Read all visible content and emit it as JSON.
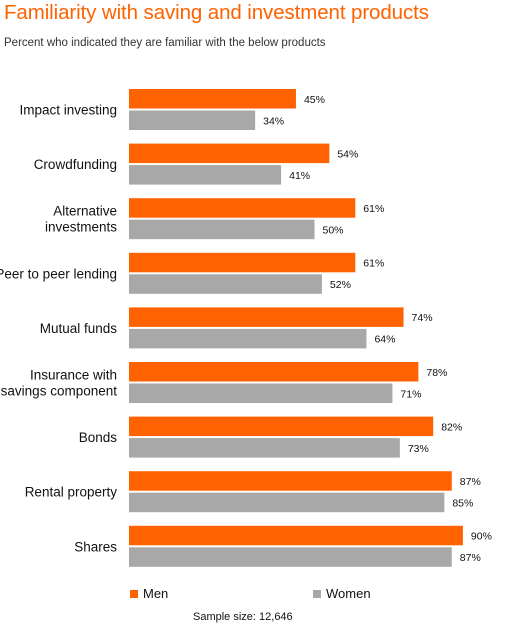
{
  "header": {
    "title": "Familiarity with saving and investment products",
    "subtitle": "Percent who indicated they are familiar with the below products"
  },
  "colors": {
    "men": "#FF6200",
    "women": "#A8A8A8"
  },
  "legend": {
    "men_label": "Men",
    "women_label": "Women"
  },
  "footnote": "Sample size: 12,646",
  "chart_data": {
    "type": "bar",
    "orientation": "horizontal",
    "title": "Familiarity with saving and investment products",
    "subtitle": "Percent who indicated they are familiar with the below products",
    "categories": [
      "Impact investing",
      "Crowdfunding",
      "Alternative investments",
      "Peer to peer lending",
      "Mutual funds",
      "Insurance with savings component",
      "Bonds",
      "Rental property",
      "Shares"
    ],
    "category_lines": [
      [
        "Impact investing"
      ],
      [
        "Crowdfunding"
      ],
      [
        "Alternative",
        "investments"
      ],
      [
        "Peer to peer lending"
      ],
      [
        "Mutual funds"
      ],
      [
        "Insurance with",
        "savings component"
      ],
      [
        "Bonds"
      ],
      [
        "Rental property"
      ],
      [
        "Shares"
      ]
    ],
    "series": [
      {
        "name": "Men",
        "color": "#FF6200",
        "values": [
          45,
          54,
          61,
          61,
          74,
          78,
          82,
          87,
          90
        ],
        "labels": [
          "45%",
          "54%",
          "61%",
          "61%",
          "74%",
          "78%",
          "82%",
          "87%",
          "90%"
        ]
      },
      {
        "name": "Women",
        "color": "#A8A8A8",
        "values": [
          34,
          41,
          50,
          52,
          64,
          71,
          73,
          85,
          87
        ],
        "labels": [
          "34%",
          "41%",
          "50%",
          "52%",
          "64%",
          "71%",
          "73%",
          "85%",
          "87%"
        ]
      }
    ],
    "xlim": [
      0,
      100
    ],
    "grid": false,
    "legend_position": "bottom"
  }
}
